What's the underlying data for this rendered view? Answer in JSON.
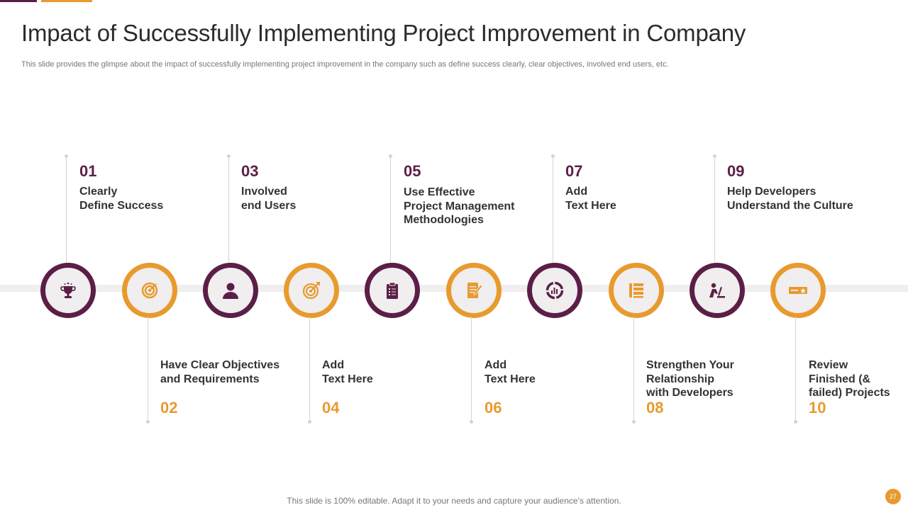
{
  "slide": {
    "title": "Impact of Successfully Implementing Project Improvement in Company",
    "subtitle": "This slide provides the glimpse about the impact of successfully implementing project improvement in the company such as define success clearly, clear objectives, involved end users, etc.",
    "footer": "This slide is 100% editable. Adapt it to your needs and capture your audience’s attention.",
    "page_number": "27"
  },
  "colors": {
    "purple": "#5b1f47",
    "orange": "#e89a2e",
    "band": "#f0eeee"
  },
  "steps": [
    {
      "number": "01",
      "label": "Clearly\nDefine Success",
      "icon": "trophy-icon"
    },
    {
      "number": "02",
      "label": "Have Clear Objectives\nand Requirements",
      "icon": "target-icon"
    },
    {
      "number": "03",
      "label": "Involved\nend Users",
      "icon": "user-icon"
    },
    {
      "number": "04",
      "label": "Add\nText Here",
      "icon": "dartboard-icon"
    },
    {
      "number": "05",
      "label": "Use Effective\nProject Management\nMethodologies",
      "icon": "clipboard-icon"
    },
    {
      "number": "06",
      "label": "Add\nText Here",
      "icon": "document-edit-icon"
    },
    {
      "number": "07",
      "label": "Add\nText Here",
      "icon": "chart-dial-icon"
    },
    {
      "number": "08",
      "label": "Strengthen Your\nRelationship\nwith Developers",
      "icon": "list-icon"
    },
    {
      "number": "09",
      "label": "Help Developers\nUnderstand the Culture",
      "icon": "developer-icon"
    },
    {
      "number": "10",
      "label": "Review\nFinished (&\nfailed) Projects",
      "icon": "rating-icon"
    }
  ]
}
